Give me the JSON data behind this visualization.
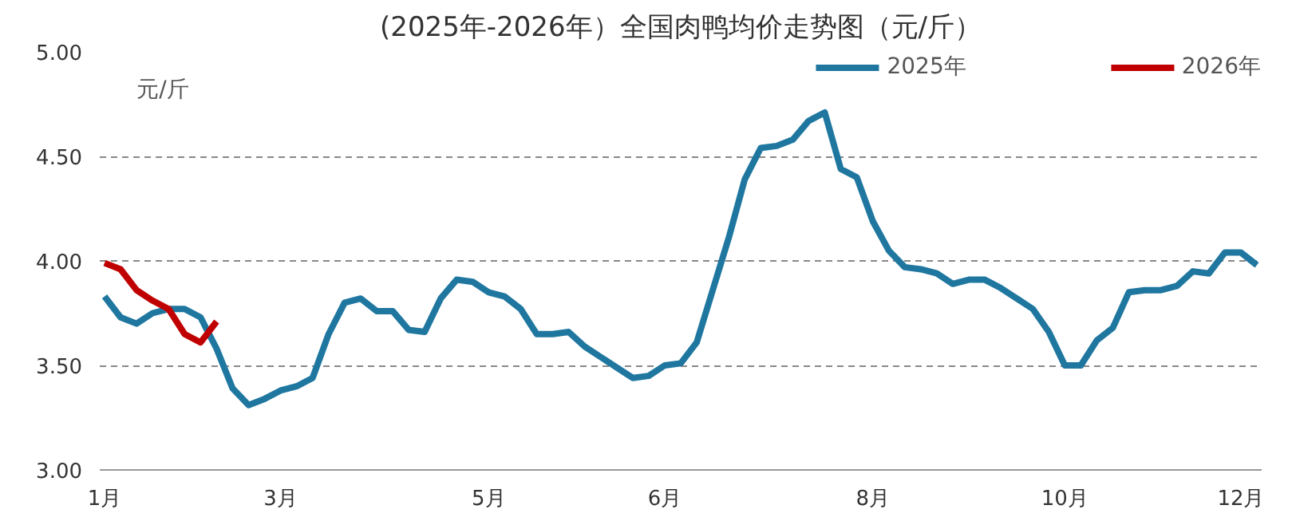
{
  "chart_data": {
    "type": "line",
    "title": "(2025年-2026年）全国肉鸭均价走势图（元/斤）",
    "ylabel": "元/斤",
    "categories": [
      "1月",
      null,
      null,
      null,
      null,
      null,
      null,
      null,
      null,
      null,
      null,
      "3月",
      null,
      null,
      null,
      null,
      null,
      null,
      null,
      null,
      null,
      null,
      null,
      null,
      "5月",
      null,
      null,
      null,
      null,
      null,
      null,
      null,
      null,
      null,
      null,
      "6月",
      null,
      null,
      null,
      null,
      null,
      null,
      null,
      null,
      null,
      null,
      null,
      null,
      "8月",
      null,
      null,
      null,
      null,
      null,
      null,
      null,
      null,
      null,
      null,
      null,
      "10月",
      null,
      null,
      null,
      null,
      null,
      null,
      null,
      null,
      null,
      null,
      "12月",
      null
    ],
    "ylim": [
      3.0,
      5.0
    ],
    "yticks": [
      {
        "value": 3.0,
        "label": "3.00"
      },
      {
        "value": 3.5,
        "label": "3.50"
      },
      {
        "value": 4.0,
        "label": "4.00"
      },
      {
        "value": 4.5,
        "label": "4.50"
      },
      {
        "value": 5.0,
        "label": "5.00"
      }
    ],
    "grid": "y",
    "legend": "top right",
    "line_style": "solid",
    "series": [
      {
        "name": "2025年",
        "color": "#1f77a0",
        "values": [
          3.83,
          3.73,
          3.7,
          3.75,
          3.77,
          3.77,
          3.73,
          3.58,
          3.39,
          3.31,
          3.34,
          3.38,
          3.4,
          3.44,
          3.65,
          3.8,
          3.82,
          3.76,
          3.76,
          3.67,
          3.66,
          3.82,
          3.91,
          3.9,
          3.85,
          3.83,
          3.77,
          3.65,
          3.65,
          3.66,
          3.59,
          3.54,
          3.49,
          3.44,
          3.45,
          3.5,
          3.51,
          3.61,
          3.86,
          4.11,
          4.39,
          4.54,
          4.55,
          4.58,
          4.67,
          4.71,
          4.44,
          4.4,
          4.19,
          4.05,
          3.97,
          3.96,
          3.94,
          3.89,
          3.91,
          3.91,
          3.87,
          3.82,
          3.77,
          3.66,
          3.5,
          3.5,
          3.62,
          3.68,
          3.85,
          3.86,
          3.86,
          3.88,
          3.95,
          3.94,
          4.04,
          4.04,
          3.98
        ]
      },
      {
        "name": "2026年",
        "color": "#c00000",
        "values": [
          3.99,
          3.96,
          3.86,
          3.81,
          3.77,
          3.65,
          3.61,
          3.71,
          null,
          null,
          null,
          null,
          null,
          null,
          null,
          null,
          null,
          null,
          null,
          null,
          null,
          null,
          null,
          null,
          null,
          null,
          null,
          null,
          null,
          null,
          null,
          null,
          null,
          null,
          null,
          null,
          null,
          null,
          null,
          null,
          null,
          null,
          null,
          null,
          null,
          null,
          null,
          null,
          null,
          null,
          null,
          null,
          null,
          null,
          null,
          null,
          null,
          null,
          null,
          null,
          null,
          null,
          null,
          null,
          null,
          null,
          null,
          null,
          null,
          null,
          null,
          null,
          null
        ]
      }
    ]
  }
}
